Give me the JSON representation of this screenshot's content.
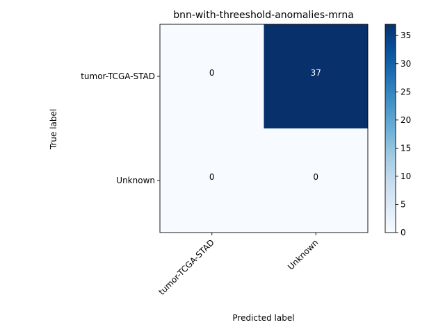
{
  "chart_data": {
    "type": "heatmap",
    "title": "bnn-with-threeshold-anomalies-mrna",
    "xlabel": "Predicted label",
    "ylabel": "True label",
    "x_categories": [
      "tumor-TCGA-STAD",
      "Unknown"
    ],
    "y_categories": [
      "tumor-TCGA-STAD",
      "Unknown"
    ],
    "values": [
      [
        0,
        37
      ],
      [
        0,
        0
      ]
    ],
    "colormap": "Blues",
    "color_low": "#f7fbff",
    "color_high": "#08306b",
    "colorbar": {
      "min": 0,
      "max": 37,
      "ticks": [
        "0",
        "5",
        "10",
        "15",
        "20",
        "25",
        "30",
        "35"
      ]
    }
  }
}
